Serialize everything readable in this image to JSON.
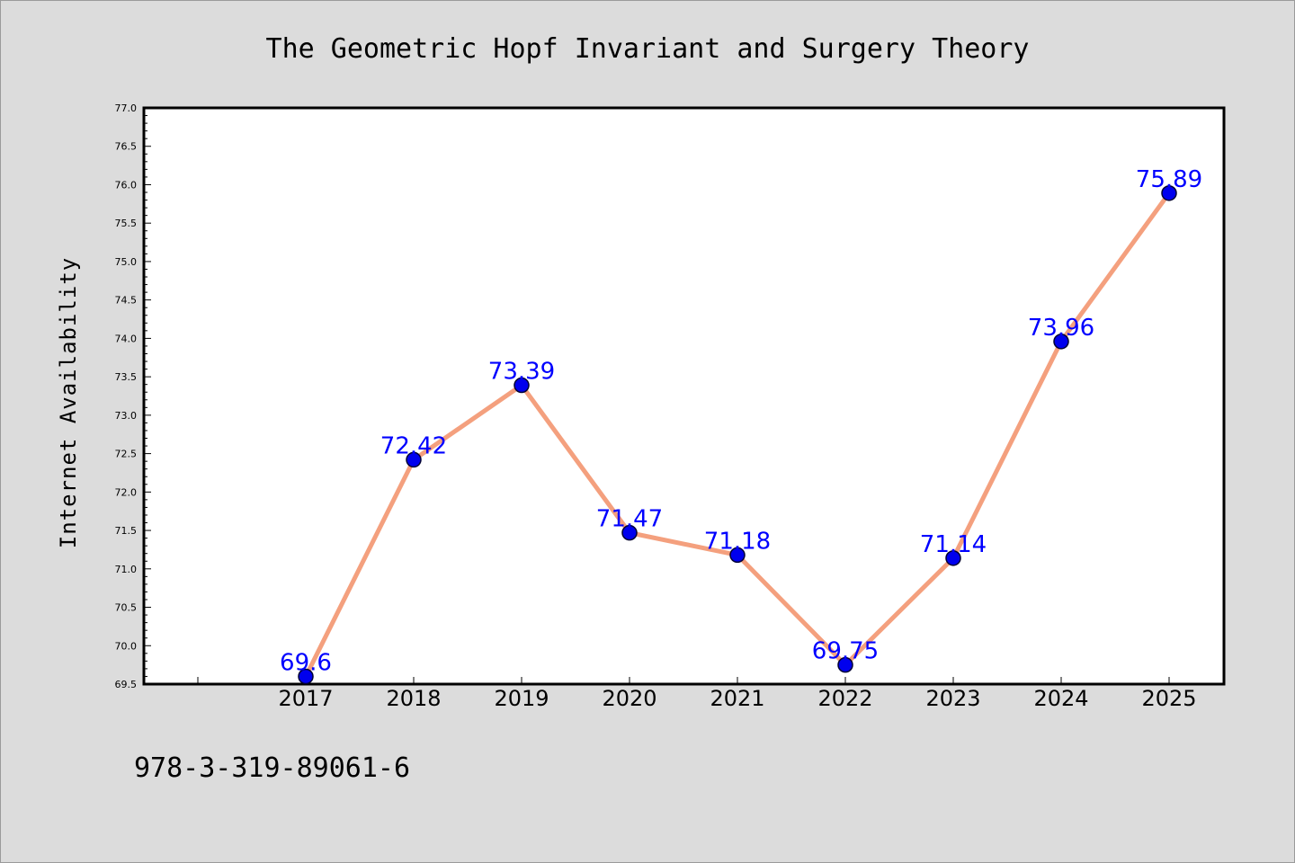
{
  "chart_data": {
    "type": "line",
    "title": "The Geometric Hopf Invariant and Surgery Theory",
    "xlabel": "",
    "ylabel": "Internet Availability",
    "categories": [
      "2017",
      "2018",
      "2019",
      "2020",
      "2021",
      "2022",
      "2023",
      "2024",
      "2025"
    ],
    "series": [
      {
        "values": [
          69.6,
          72.42,
          73.39,
          71.47,
          71.18,
          69.75,
          71.14,
          73.96,
          75.89
        ],
        "labels": [
          "69.6",
          "72.42",
          "73.39",
          "71.47",
          "71.18",
          "69.75",
          "71.14",
          "73.96",
          "75.89"
        ],
        "line_color": "#f4a07e",
        "marker_color": "#0000ee",
        "label_color": "#0000ff"
      }
    ],
    "ylim": [
      69.5,
      77.0
    ],
    "yticks": [
      "69.5",
      "70.0",
      "70.5",
      "71.0",
      "71.5",
      "72.0",
      "72.5",
      "73.0",
      "73.5",
      "74.0",
      "74.5",
      "75.0",
      "75.5",
      "76.0",
      "76.5",
      "77.0"
    ],
    "grid": false,
    "legend": "none"
  },
  "footer": {
    "isbn": "978-3-319-89061-6"
  },
  "colors": {
    "background": "#dcdcdc",
    "plot_background": "#ffffff"
  }
}
